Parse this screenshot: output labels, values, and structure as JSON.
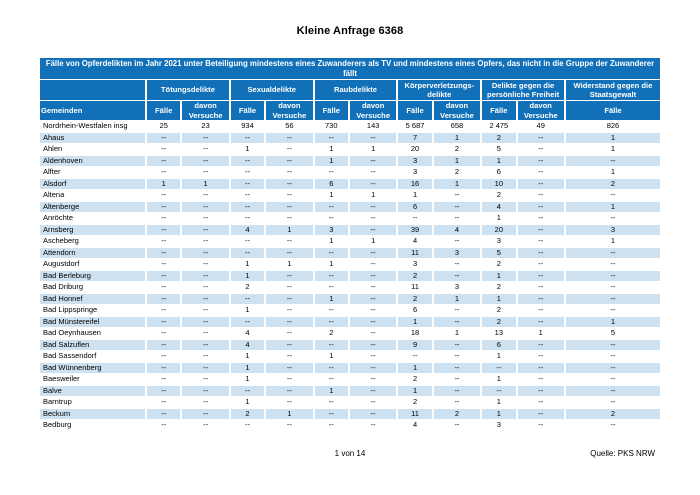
{
  "doc": {
    "title": "Kleine Anfrage 6368"
  },
  "colors": {
    "header_blue": "#1170B8",
    "stripe_blue": "#CDE1F0"
  },
  "table": {
    "header": "Fälle von Opferdelikten im Jahr 2021 unter Beteiligung mindestens eines Zuwanderers als TV und mindestens eines Opfers, das nicht in die Gruppe der Zuwanderer fällt",
    "first_col_header": "Gemeinden",
    "groups": [
      {
        "label": "Tötungsdelikte",
        "sub": [
          "Fälle",
          "davon Versuche"
        ]
      },
      {
        "label": "Sexualdelikte",
        "sub": [
          "Fälle",
          "davon Versuche"
        ]
      },
      {
        "label": "Raubdelikte",
        "sub": [
          "Fälle",
          "davon Versuche"
        ]
      },
      {
        "label": "Körperverletzungs-delikte",
        "sub": [
          "Fälle",
          "davon Versuche"
        ]
      },
      {
        "label": "Delikte gegen die persönliche Freiheit",
        "sub": [
          "Fälle",
          "davon Versuche"
        ]
      },
      {
        "label": "Widerstand gegen die Staatsgewalt",
        "sub": [
          "Fälle"
        ]
      }
    ],
    "rows": [
      {
        "name": "Nordrhein-Westfalen insg",
        "values": [
          "25",
          "23",
          "934",
          "56",
          "730",
          "143",
          "5 687",
          "658",
          "2 475",
          "49",
          "826"
        ]
      },
      {
        "name": "Ahaus",
        "values": [
          "--",
          "--",
          "--",
          "--",
          "--",
          "--",
          "7",
          "1",
          "2",
          "--",
          "1"
        ]
      },
      {
        "name": "Ahlen",
        "values": [
          "--",
          "--",
          "1",
          "--",
          "1",
          "1",
          "20",
          "2",
          "5",
          "--",
          "1"
        ]
      },
      {
        "name": "Aldenhoven",
        "values": [
          "--",
          "--",
          "--",
          "--",
          "1",
          "--",
          "3",
          "1",
          "1",
          "--",
          "--"
        ]
      },
      {
        "name": "Alfter",
        "values": [
          "--",
          "--",
          "--",
          "--",
          "--",
          "--",
          "3",
          "2",
          "6",
          "--",
          "1"
        ]
      },
      {
        "name": "Alsdorf",
        "values": [
          "1",
          "1",
          "--",
          "--",
          "6",
          "--",
          "16",
          "1",
          "10",
          "--",
          "2"
        ]
      },
      {
        "name": "Altena",
        "values": [
          "--",
          "--",
          "--",
          "--",
          "1",
          "1",
          "1",
          "--",
          "2",
          "--",
          "--"
        ]
      },
      {
        "name": "Altenberge",
        "values": [
          "--",
          "--",
          "--",
          "--",
          "--",
          "--",
          "6",
          "--",
          "4",
          "--",
          "1"
        ]
      },
      {
        "name": "Anröchte",
        "values": [
          "--",
          "--",
          "--",
          "--",
          "--",
          "--",
          "--",
          "--",
          "1",
          "--",
          "--"
        ]
      },
      {
        "name": "Arnsberg",
        "values": [
          "--",
          "--",
          "4",
          "1",
          "3",
          "--",
          "39",
          "4",
          "20",
          "--",
          "3"
        ]
      },
      {
        "name": "Ascheberg",
        "values": [
          "--",
          "--",
          "--",
          "--",
          "1",
          "1",
          "4",
          "--",
          "3",
          "--",
          "1"
        ]
      },
      {
        "name": "Attendorn",
        "values": [
          "--",
          "--",
          "--",
          "--",
          "--",
          "--",
          "11",
          "3",
          "5",
          "--",
          "--"
        ]
      },
      {
        "name": "Augustdorf",
        "values": [
          "--",
          "--",
          "1",
          "1",
          "1",
          "--",
          "3",
          "--",
          "2",
          "--",
          "--"
        ]
      },
      {
        "name": "Bad Berleburg",
        "values": [
          "--",
          "--",
          "1",
          "--",
          "--",
          "--",
          "2",
          "--",
          "1",
          "--",
          "--"
        ]
      },
      {
        "name": "Bad Driburg",
        "values": [
          "--",
          "--",
          "2",
          "--",
          "--",
          "--",
          "11",
          "3",
          "2",
          "--",
          "--"
        ]
      },
      {
        "name": "Bad Honnef",
        "values": [
          "--",
          "--",
          "--",
          "--",
          "1",
          "--",
          "2",
          "1",
          "1",
          "--",
          "--"
        ]
      },
      {
        "name": "Bad Lippspringe",
        "values": [
          "--",
          "--",
          "1",
          "--",
          "--",
          "--",
          "6",
          "--",
          "2",
          "--",
          "--"
        ]
      },
      {
        "name": "Bad Münstereifel",
        "values": [
          "--",
          "--",
          "--",
          "--",
          "--",
          "--",
          "1",
          "--",
          "2",
          "--",
          "1"
        ]
      },
      {
        "name": "Bad Oeynhausen",
        "values": [
          "--",
          "--",
          "4",
          "--",
          "2",
          "--",
          "18",
          "1",
          "13",
          "1",
          "5"
        ]
      },
      {
        "name": "Bad Salzuflen",
        "values": [
          "--",
          "--",
          "4",
          "--",
          "--",
          "--",
          "9",
          "--",
          "6",
          "--",
          "--"
        ]
      },
      {
        "name": "Bad Sassendorf",
        "values": [
          "--",
          "--",
          "1",
          "--",
          "1",
          "--",
          "--",
          "--",
          "1",
          "--",
          "--"
        ]
      },
      {
        "name": "Bad Wünnenberg",
        "values": [
          "--",
          "--",
          "1",
          "--",
          "--",
          "--",
          "1",
          "--",
          "--",
          "--",
          "--"
        ]
      },
      {
        "name": "Baesweiler",
        "values": [
          "--",
          "--",
          "1",
          "--",
          "--",
          "--",
          "2",
          "--",
          "1",
          "--",
          "--"
        ]
      },
      {
        "name": "Balve",
        "values": [
          "--",
          "--",
          "--",
          "--",
          "1",
          "--",
          "1",
          "--",
          "--",
          "--",
          "--"
        ]
      },
      {
        "name": "Barntrup",
        "values": [
          "--",
          "--",
          "1",
          "--",
          "--",
          "--",
          "2",
          "--",
          "1",
          "--",
          "--"
        ]
      },
      {
        "name": "Beckum",
        "values": [
          "--",
          "--",
          "2",
          "1",
          "--",
          "--",
          "11",
          "2",
          "1",
          "--",
          "2"
        ]
      },
      {
        "name": "Bedburg",
        "values": [
          "--",
          "--",
          "--",
          "--",
          "--",
          "--",
          "4",
          "--",
          "3",
          "--",
          "--"
        ]
      }
    ]
  },
  "footer": {
    "page_indicator": "1 von 14",
    "source": "Quelle: PKS NRW"
  }
}
